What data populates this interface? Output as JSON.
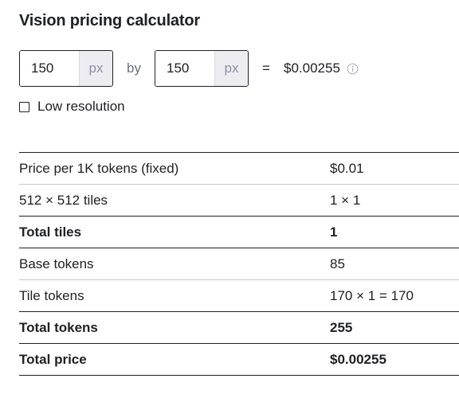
{
  "title": "Vision pricing calculator",
  "width": {
    "value": "150",
    "unit": "px"
  },
  "by_label": "by",
  "height": {
    "value": "150",
    "unit": "px"
  },
  "equals_label": "=",
  "result": "$0.00255",
  "low_resolution": {
    "label": "Low resolution",
    "checked": false
  },
  "rows": [
    {
      "label": "Price per 1K tokens (fixed)",
      "value": "$0.01"
    },
    {
      "label": "512 × 512 tiles",
      "value": "1 × 1"
    },
    {
      "label": "Total tiles",
      "value": "1"
    },
    {
      "label": "Base tokens",
      "value": "85"
    },
    {
      "label": "Tile tokens",
      "value": "170 × 1 = 170"
    },
    {
      "label": "Total tokens",
      "value": "255"
    },
    {
      "label": "Total price",
      "value": "$0.00255"
    }
  ]
}
